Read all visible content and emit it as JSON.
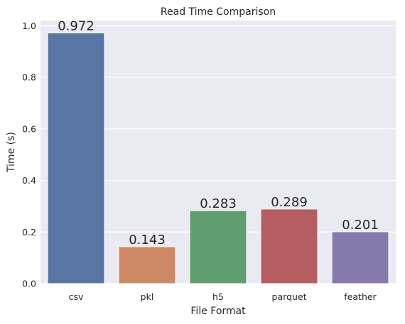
{
  "chart_data": {
    "type": "bar",
    "title": "Read Time Comparison",
    "xlabel": "File Format",
    "ylabel": "Time (s)",
    "categories": [
      "csv",
      "pkl",
      "h5",
      "parquet",
      "feather"
    ],
    "values": [
      0.972,
      0.143,
      0.283,
      0.289,
      0.201
    ],
    "data_labels": [
      "0.972",
      "0.143",
      "0.283",
      "0.289",
      "0.201"
    ],
    "yticks": [
      0.0,
      0.2,
      0.4,
      0.6,
      0.8,
      1.0
    ],
    "ytick_labels": [
      "0.0",
      "0.2",
      "0.4",
      "0.6",
      "0.8",
      "1.0"
    ],
    "ylim": [
      0,
      1.02
    ],
    "grid": true,
    "colors": [
      "#5875a4",
      "#cc8963",
      "#5f9e6e",
      "#b55d60",
      "#857aab"
    ],
    "background": "#eaeaf2"
  }
}
